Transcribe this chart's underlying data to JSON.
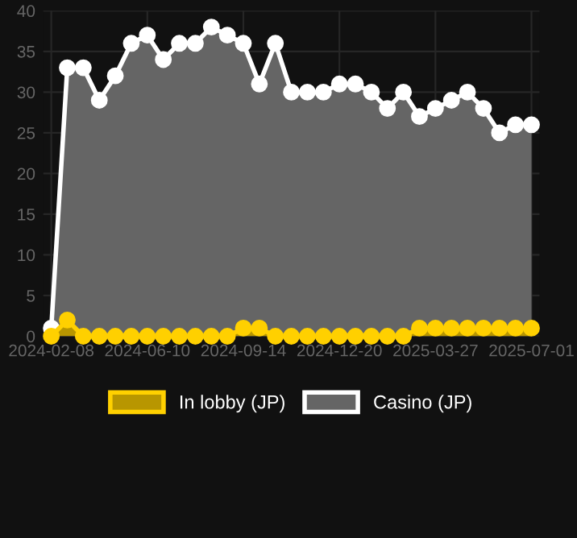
{
  "chart_data": {
    "type": "area",
    "categories": [
      "2024-02-08",
      null,
      null,
      null,
      null,
      null,
      "2024-06-10",
      null,
      null,
      null,
      null,
      null,
      "2024-09-14",
      null,
      null,
      null,
      null,
      null,
      "2024-12-20",
      null,
      null,
      null,
      null,
      null,
      "2025-03-27",
      null,
      null,
      null,
      null,
      null,
      "2025-07-01"
    ],
    "series": [
      {
        "name": "Casino (JP)",
        "color": "#ffffff",
        "values": [
          1,
          33,
          33,
          29,
          32,
          36,
          37,
          34,
          36,
          36,
          38,
          37,
          36,
          31,
          36,
          30,
          30,
          30,
          31,
          31,
          30,
          28,
          30,
          27,
          28,
          29,
          30,
          28,
          25,
          26,
          26
        ]
      },
      {
        "name": "In lobby (JP)",
        "color": "#ffd000",
        "values": [
          0,
          2,
          0,
          0,
          0,
          0,
          0,
          0,
          0,
          0,
          0,
          0,
          1,
          1,
          0,
          0,
          0,
          0,
          0,
          0,
          0,
          0,
          0,
          1,
          1,
          1,
          1,
          1,
          1,
          1,
          1
        ]
      }
    ],
    "ylim": [
      0,
      40
    ],
    "yticks": [
      0,
      5,
      10,
      15,
      20,
      25,
      30,
      35,
      40
    ],
    "grid": true,
    "marker": "circle",
    "legend": "bottom"
  }
}
